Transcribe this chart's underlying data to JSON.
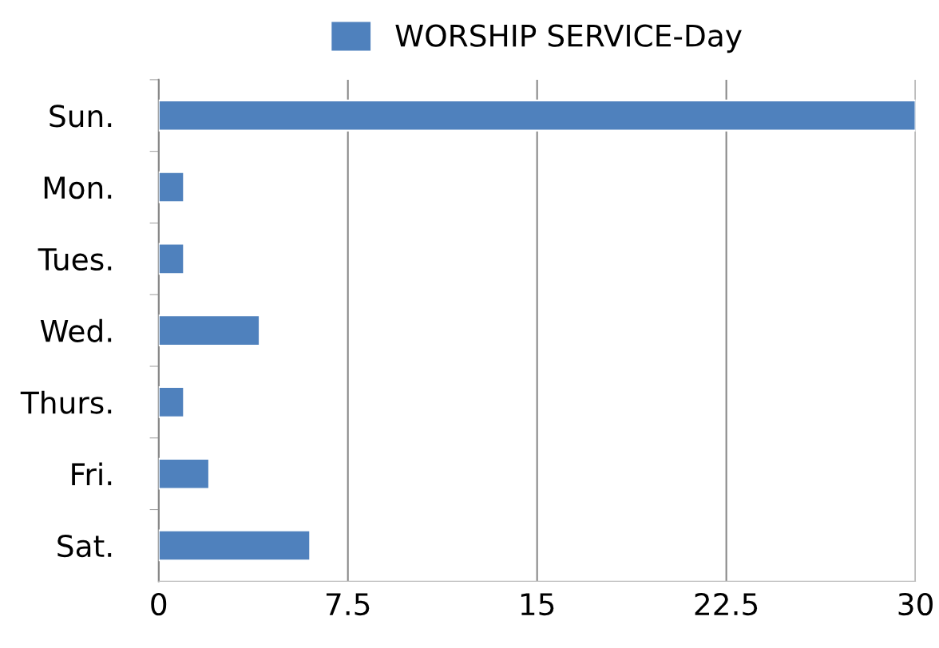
{
  "chart_data": {
    "type": "bar",
    "orientation": "horizontal",
    "categories": [
      "Sun.",
      "Mon.",
      "Tues.",
      "Wed.",
      "Thurs.",
      "Fri.",
      "Sat."
    ],
    "series": [
      {
        "name": "WORSHIP SERVICE-Day",
        "color": "#4f81bd",
        "values": [
          30,
          1,
          1,
          4,
          1,
          2,
          6
        ]
      }
    ],
    "xlim": [
      0,
      30
    ],
    "xticks": [
      0,
      7.5,
      15,
      22.5,
      30
    ],
    "grid": "x",
    "legend": "top"
  }
}
